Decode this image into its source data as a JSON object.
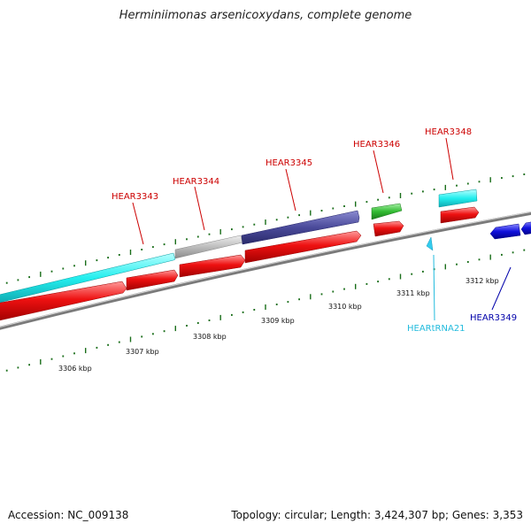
{
  "title": "Herminiimonas arsenicoxydans, complete genome",
  "footer": {
    "accession": "Accession: NC_009138",
    "summary": "Topology: circular; Length: 3,424,307 bp; Genes: 3,353"
  },
  "colors": {
    "backbone": "#808080",
    "cyan": "#33f0f0",
    "red": "#ee1111",
    "gray": "#b8b8b8",
    "purple": "#4a4aa0",
    "green": "#33bb33",
    "blue": "#1111dd",
    "tick": "#1a6e1a",
    "label_red": "#cc0000",
    "label_cyan": "#22bbdd",
    "label_blue": "#0000aa"
  },
  "tick_labels": [
    "3306 kbp",
    "3307 kbp",
    "3308 kbp",
    "3309 kbp",
    "3310 kbp",
    "3311 kbp",
    "3312 kbp"
  ],
  "gene_labels": [
    {
      "id": "hear3343",
      "text": "HEAR3343",
      "color": "label_red"
    },
    {
      "id": "hear3344",
      "text": "HEAR3344",
      "color": "label_red"
    },
    {
      "id": "hear3345",
      "text": "HEAR3345",
      "color": "label_red"
    },
    {
      "id": "hear3346",
      "text": "HEAR3346",
      "color": "label_red"
    },
    {
      "id": "hear3348",
      "text": "HEAR3348",
      "color": "label_red"
    },
    {
      "id": "heartrna21",
      "text": "HEARtRNA21",
      "color": "label_cyan"
    },
    {
      "id": "hear3349",
      "text": "HEAR3349",
      "color": "label_blue"
    }
  ]
}
